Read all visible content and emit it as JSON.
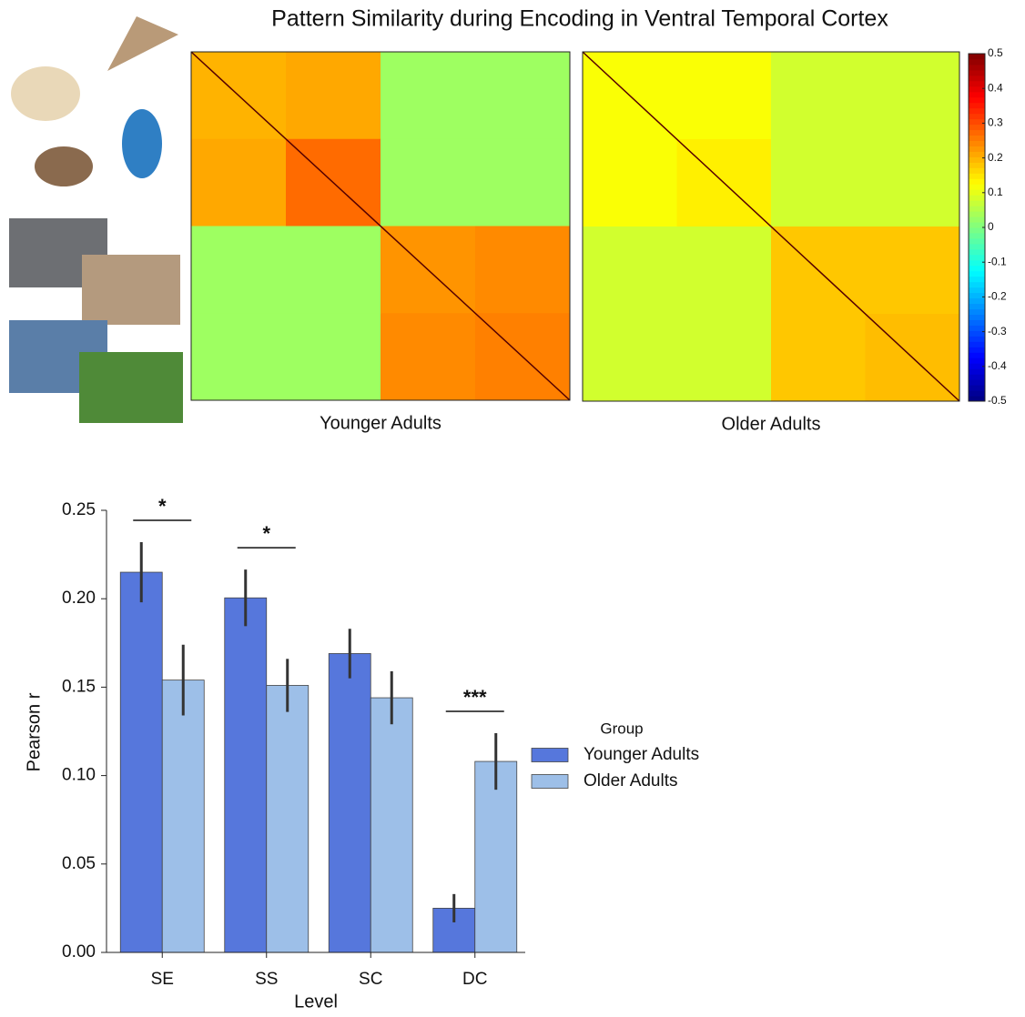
{
  "title": "Pattern Similarity during Encoding in Ventral Temporal Cortex",
  "chart_data": [
    {
      "type": "heatmap",
      "xlabel": "Younger Adults",
      "colormap": "jet",
      "zlim": [
        -0.5,
        0.5
      ],
      "values": [
        [
          0.2,
          0.21,
          0.03,
          0.03
        ],
        [
          0.21,
          0.27,
          0.03,
          0.03
        ],
        [
          0.03,
          0.03,
          0.23,
          0.24
        ],
        [
          0.03,
          0.03,
          0.24,
          0.25
        ]
      ]
    },
    {
      "type": "heatmap",
      "xlabel": "Older Adults",
      "colormap": "jet",
      "zlim": [
        -0.5,
        0.5
      ],
      "values": [
        [
          0.12,
          0.12,
          0.08,
          0.08
        ],
        [
          0.12,
          0.14,
          0.08,
          0.08
        ],
        [
          0.08,
          0.08,
          0.18,
          0.18
        ],
        [
          0.08,
          0.08,
          0.18,
          0.19
        ]
      ],
      "zticks": [
        0.5,
        0.4,
        0.3,
        0.2,
        0.1,
        0,
        -0.1,
        -0.2,
        -0.3,
        -0.4,
        -0.5
      ]
    },
    {
      "type": "bar",
      "xlabel": "Level",
      "ylabel": "Pearson r",
      "categories": [
        "SE",
        "SS",
        "SC",
        "DC"
      ],
      "series": [
        {
          "name": "Younger Adults",
          "color": "#5677dc",
          "values": [
            0.215,
            0.2005,
            0.169,
            0.025
          ],
          "errors": [
            0.017,
            0.016,
            0.014,
            0.008
          ]
        },
        {
          "name": "Older Adults",
          "color": "#9dbfe8",
          "values": [
            0.154,
            0.151,
            0.144,
            0.108
          ],
          "errors": [
            0.02,
            0.015,
            0.015,
            0.016
          ]
        }
      ],
      "ylim": [
        0,
        0.25
      ],
      "yticks": [
        {
          "value": 0,
          "label": "0.00"
        },
        {
          "value": 0.05,
          "label": "0.05"
        },
        {
          "value": 0.1,
          "label": "0.10"
        },
        {
          "value": 0.15,
          "label": "0.15"
        },
        {
          "value": 0.2,
          "label": "0.20"
        },
        {
          "value": 0.25,
          "label": "0.25"
        }
      ],
      "legend_title": "Group",
      "annotations": [
        {
          "text": "*",
          "category": "SE"
        },
        {
          "text": "*",
          "category": "SS"
        },
        {
          "text": "***",
          "category": "DC"
        }
      ]
    }
  ]
}
